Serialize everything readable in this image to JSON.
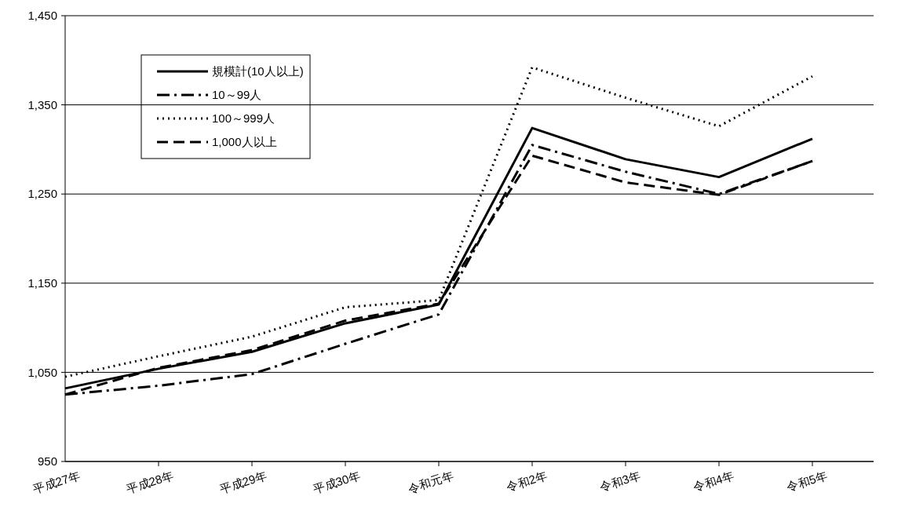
{
  "chart_data": {
    "type": "line",
    "categories": [
      "平成27年",
      "平成28年",
      "平成29年",
      "平成30年",
      "令和元年",
      "令和2年",
      "令和3年",
      "令和4年",
      "令和5年"
    ],
    "series": [
      {
        "name": "規模計(10人以上)",
        "color": "#000000",
        "line_style": "solid",
        "values": [
          1032,
          1054,
          1073,
          1105,
          1126,
          1324,
          1289,
          1269,
          1312
        ]
      },
      {
        "name": "10～99人",
        "color": "#000000",
        "line_style": "dashdot",
        "values": [
          1025,
          1035,
          1048,
          1082,
          1115,
          1305,
          1275,
          1250,
          1287
        ]
      },
      {
        "name": "100～999人",
        "color": "#000000",
        "line_style": "dotted",
        "values": [
          1045,
          1068,
          1090,
          1123,
          1131,
          1392,
          1358,
          1326,
          1382
        ]
      },
      {
        "name": "1,000人以上",
        "color": "#000000",
        "line_style": "dashed",
        "values": [
          1025,
          1055,
          1075,
          1108,
          1127,
          1293,
          1263,
          1249,
          1287
        ]
      }
    ],
    "ylim": [
      950,
      1450
    ],
    "yticks": [
      {
        "value": 950,
        "label": "950"
      },
      {
        "value": 1050,
        "label": "1,050"
      },
      {
        "value": 1150,
        "label": "1,150"
      },
      {
        "value": 1250,
        "label": "1,250"
      },
      {
        "value": 1350,
        "label": "1,350"
      },
      {
        "value": 1450,
        "label": "1,450"
      }
    ],
    "grid": "y",
    "legend": "top left",
    "marker": "none"
  }
}
